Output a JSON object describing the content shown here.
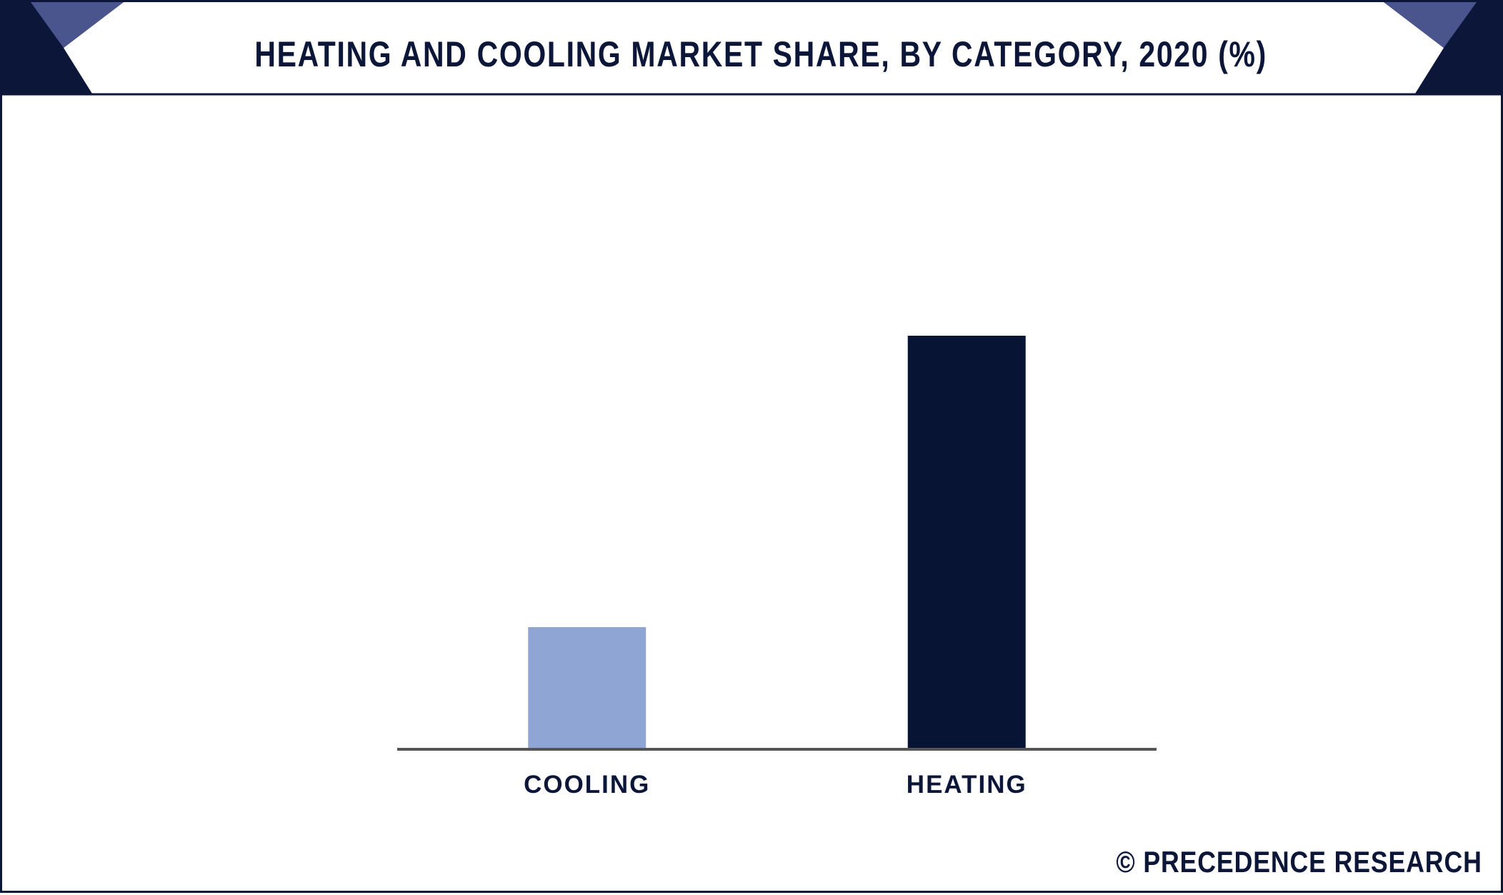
{
  "colors": {
    "navy": "#0b1638",
    "accent": "#4a558e",
    "cooling": "#8fa5d3",
    "heating": "#071433",
    "axis": "#555555"
  },
  "header": {
    "title": "HEATING AND COOLING MARKET SHARE, BY CATEGORY, 2020 (%)"
  },
  "chart_data": {
    "type": "bar",
    "title": "HEATING AND COOLING MARKET SHARE, BY CATEGORY, 2020 (%)",
    "categories": [
      "COOLING",
      "HEATING"
    ],
    "values": [
      22.8,
      77.2
    ],
    "bar_colors": [
      "#8fa5d3",
      "#071433"
    ],
    "ylim": [
      0,
      100
    ],
    "grid": false,
    "legend": "none"
  },
  "footer": {
    "credit": "© PRECEDENCE RESEARCH"
  }
}
